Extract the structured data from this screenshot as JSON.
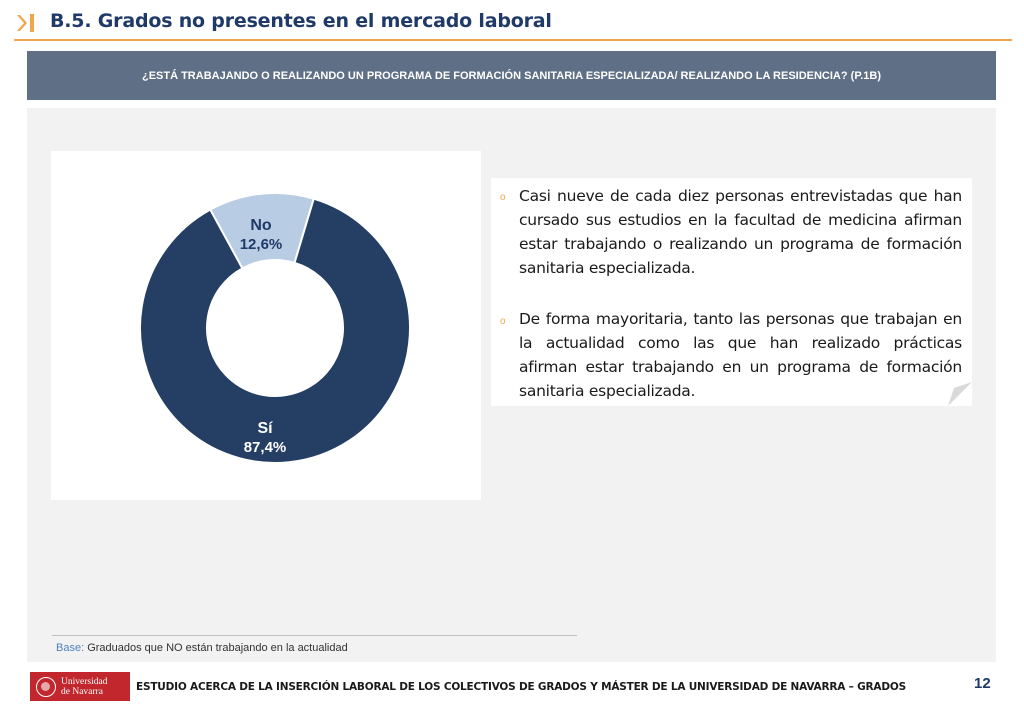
{
  "header": {
    "title": "B.5. Grados no presentes en el mercado laboral",
    "accent_color": "#f0a64b",
    "title_color": "#1f3a68"
  },
  "question": {
    "text": "¿ESTÁ TRABAJANDO O REALIZANDO UN PROGRAMA DE FORMACIÓN SANITARIA ESPECIALIZADA/ REALIZANDO LA RESIDENCIA? (P.1B)"
  },
  "chart_data": {
    "type": "pie",
    "variant": "donut",
    "slices": [
      {
        "label": "No",
        "value": 12.6,
        "display": "12,6%",
        "color": "#b8cce4"
      },
      {
        "label": "Sí",
        "value": 87.4,
        "display": "87,4%",
        "color": "#243f63"
      }
    ]
  },
  "findings": [
    {
      "text": "Casi nueve de cada diez personas entrevistadas que han cursado sus estudios en la facultad de medicina afirman estar trabajando o realizando un programa de formación sanitaria especializada."
    },
    {
      "text": "De forma mayoritaria, tanto las personas que trabajan en la actualidad como las que han realizado prácticas afirman estar trabajando en un programa de formación sanitaria especializada."
    }
  ],
  "bullet_glyph": "o",
  "base": {
    "label": "Base:",
    "text": "Graduados que NO están trabajando en la actualidad"
  },
  "footer": {
    "logo_line1": "Universidad",
    "logo_line2": "de Navarra",
    "text": "ESTUDIO ACERCA DE LA INSERCIÓN LABORAL DE LOS COLECTIVOS DE GRADOS Y MÁSTER DE LA UNIVERSIDAD DE NAVARRA – GRADOS",
    "page": "12"
  }
}
